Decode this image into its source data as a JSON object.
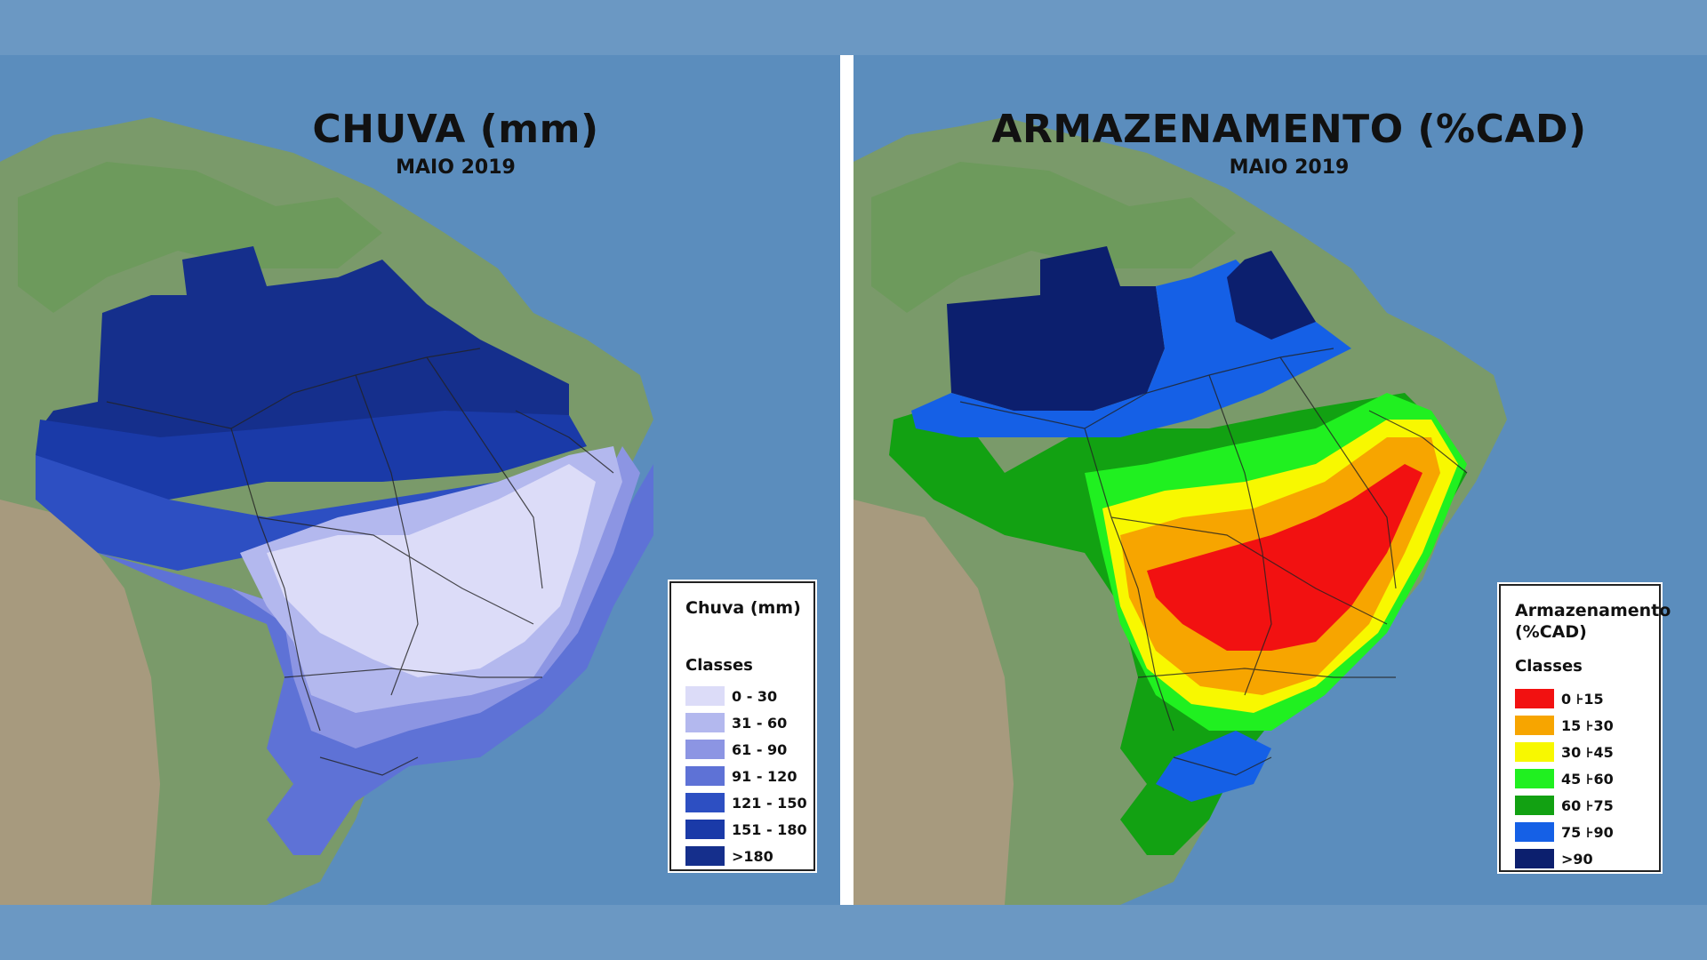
{
  "left_map": {
    "title": "CHUVA (mm)",
    "subtitle": "MAIO 2019",
    "legend": {
      "title": "Chuva (mm)",
      "classes_label": "Classes",
      "items": [
        {
          "label": "0 - 30",
          "color": "#dcdcf8"
        },
        {
          "label": "31 - 60",
          "color": "#b3b8ee"
        },
        {
          "label": "61 - 90",
          "color": "#8c95e3"
        },
        {
          "label": "91 - 120",
          "color": "#5e72d6"
        },
        {
          "label": "121 - 150",
          "color": "#2d4fc2"
        },
        {
          "label": "151 - 180",
          "color": "#1a3aa8"
        },
        {
          "label": ">180",
          "color": "#152f8c"
        }
      ]
    }
  },
  "right_map": {
    "title": "ARMAZENAMENTO (%CAD)",
    "subtitle": "MAIO 2019",
    "legend": {
      "title_line1": "Armazenamento",
      "title_line2": "(%CAD)",
      "classes_label": "Classes",
      "items": [
        {
          "label": "0 ⊦15",
          "color": "#f21111"
        },
        {
          "label": "15 ⊦30",
          "color": "#f7a500"
        },
        {
          "label": "30 ⊦45",
          "color": "#f8f800"
        },
        {
          "label": "45 ⊦60",
          "color": "#20f020"
        },
        {
          "label": "60 ⊦75",
          "color": "#12a112"
        },
        {
          "label": "75 ⊦90",
          "color": "#1560e6"
        },
        {
          "label": ">90",
          "color": "#0c1f6e"
        }
      ]
    }
  }
}
